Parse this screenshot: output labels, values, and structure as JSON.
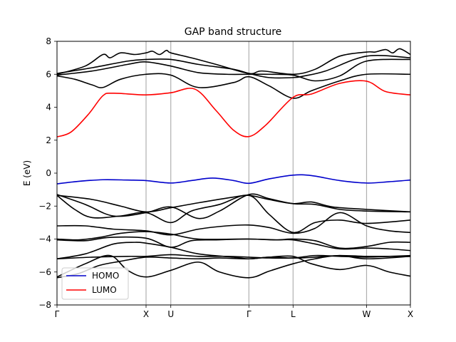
{
  "chart_data": {
    "type": "line",
    "title": "GAP band structure",
    "xlabel": "",
    "ylabel": "E (eV)",
    "ylim": [
      -8,
      8
    ],
    "yticks": [
      -8,
      -6,
      -4,
      -2,
      0,
      2,
      4,
      6,
      8
    ],
    "xlim": [
      0,
      1
    ],
    "kpoints": [
      {
        "label": "Γ",
        "x": 0.0
      },
      {
        "label": "X",
        "x": 0.252
      },
      {
        "label": "U",
        "x": 0.322
      },
      {
        "label": "Γ",
        "x": 0.543
      },
      {
        "label": "L",
        "x": 0.668
      },
      {
        "label": "W",
        "x": 0.876
      },
      {
        "label": "X",
        "x": 1.0
      }
    ],
    "grid": "vertical lines at k-points",
    "legend": {
      "placement": "lower-left",
      "entries": [
        "HOMO",
        "LUMO"
      ]
    },
    "colors": {
      "band": "#000000",
      "homo": "#0000cc",
      "lumo": "#ff0000",
      "grid": "#b0b0b0"
    },
    "series": [
      {
        "name": "HOMO",
        "role": "homo",
        "points": [
          [
            0,
            -0.65
          ],
          [
            0.06,
            -0.5
          ],
          [
            0.13,
            -0.4
          ],
          [
            0.2,
            -0.42
          ],
          [
            0.252,
            -0.45
          ],
          [
            0.322,
            -0.6
          ],
          [
            0.38,
            -0.45
          ],
          [
            0.44,
            -0.3
          ],
          [
            0.5,
            -0.45
          ],
          [
            0.543,
            -0.62
          ],
          [
            0.6,
            -0.35
          ],
          [
            0.668,
            -0.12
          ],
          [
            0.72,
            -0.15
          ],
          [
            0.8,
            -0.45
          ],
          [
            0.876,
            -0.6
          ],
          [
            0.94,
            -0.52
          ],
          [
            1.0,
            -0.42
          ]
        ]
      },
      {
        "name": "LUMO",
        "role": "lumo",
        "points": [
          [
            0,
            2.2
          ],
          [
            0.04,
            2.5
          ],
          [
            0.09,
            3.6
          ],
          [
            0.13,
            4.7
          ],
          [
            0.16,
            4.85
          ],
          [
            0.252,
            4.75
          ],
          [
            0.322,
            4.88
          ],
          [
            0.39,
            5.1
          ],
          [
            0.45,
            3.8
          ],
          [
            0.5,
            2.6
          ],
          [
            0.543,
            2.22
          ],
          [
            0.59,
            2.9
          ],
          [
            0.668,
            4.6
          ],
          [
            0.72,
            4.8
          ],
          [
            0.8,
            5.45
          ],
          [
            0.876,
            5.58
          ],
          [
            0.93,
            4.95
          ],
          [
            1.0,
            4.75
          ]
        ]
      },
      {
        "role": "band",
        "points": [
          [
            0,
            6.0
          ],
          [
            0.08,
            6.5
          ],
          [
            0.13,
            7.2
          ],
          [
            0.15,
            7.0
          ],
          [
            0.18,
            7.3
          ],
          [
            0.22,
            7.2
          ],
          [
            0.252,
            7.3
          ],
          [
            0.27,
            7.4
          ],
          [
            0.29,
            7.2
          ],
          [
            0.31,
            7.45
          ],
          [
            0.322,
            7.3
          ],
          [
            0.38,
            7.0
          ],
          [
            0.45,
            6.6
          ],
          [
            0.543,
            6.05
          ],
          [
            0.58,
            6.2
          ],
          [
            0.668,
            6.0
          ],
          [
            0.73,
            6.3
          ],
          [
            0.8,
            7.1
          ],
          [
            0.876,
            7.35
          ],
          [
            0.9,
            7.35
          ],
          [
            0.93,
            7.5
          ],
          [
            0.95,
            7.3
          ],
          [
            0.97,
            7.55
          ],
          [
            1.0,
            7.2
          ]
        ]
      },
      {
        "role": "band",
        "points": [
          [
            0,
            6.05
          ],
          [
            0.1,
            6.4
          ],
          [
            0.2,
            6.8
          ],
          [
            0.252,
            6.9
          ],
          [
            0.322,
            6.9
          ],
          [
            0.4,
            6.6
          ],
          [
            0.5,
            6.3
          ],
          [
            0.543,
            6.05
          ],
          [
            0.6,
            5.8
          ],
          [
            0.668,
            5.8
          ],
          [
            0.7,
            5.9
          ],
          [
            0.76,
            6.2
          ],
          [
            0.876,
            7.1
          ],
          [
            1.0,
            7.0
          ]
        ]
      },
      {
        "role": "band",
        "points": [
          [
            0,
            5.95
          ],
          [
            0.1,
            6.2
          ],
          [
            0.2,
            6.6
          ],
          [
            0.252,
            6.75
          ],
          [
            0.322,
            6.5
          ],
          [
            0.4,
            6.1
          ],
          [
            0.48,
            6.0
          ],
          [
            0.543,
            6.0
          ],
          [
            0.6,
            6.0
          ],
          [
            0.668,
            5.95
          ],
          [
            0.73,
            5.6
          ],
          [
            0.8,
            5.9
          ],
          [
            0.876,
            6.8
          ],
          [
            1.0,
            6.9
          ]
        ]
      },
      {
        "role": "band",
        "points": [
          [
            0,
            5.9
          ],
          [
            0.05,
            5.7
          ],
          [
            0.1,
            5.35
          ],
          [
            0.13,
            5.2
          ],
          [
            0.18,
            5.7
          ],
          [
            0.252,
            6.0
          ],
          [
            0.322,
            5.95
          ],
          [
            0.4,
            5.2
          ],
          [
            0.5,
            5.5
          ],
          [
            0.543,
            5.85
          ],
          [
            0.6,
            5.3
          ],
          [
            0.668,
            4.55
          ],
          [
            0.72,
            5.0
          ],
          [
            0.8,
            5.6
          ],
          [
            0.876,
            6.0
          ],
          [
            1.0,
            6.0
          ]
        ]
      },
      {
        "role": "band",
        "points": [
          [
            0,
            -1.35
          ],
          [
            0.1,
            -1.6
          ],
          [
            0.18,
            -2.0
          ],
          [
            0.252,
            -2.35
          ],
          [
            0.322,
            -2.1
          ],
          [
            0.4,
            -1.8
          ],
          [
            0.5,
            -1.45
          ],
          [
            0.543,
            -1.35
          ],
          [
            0.6,
            -1.6
          ],
          [
            0.668,
            -1.85
          ],
          [
            0.72,
            -1.75
          ],
          [
            0.78,
            -2.05
          ],
          [
            0.876,
            -2.2
          ],
          [
            1.0,
            -2.35
          ]
        ]
      },
      {
        "role": "band",
        "points": [
          [
            0,
            -1.3
          ],
          [
            0.08,
            -1.9
          ],
          [
            0.16,
            -2.6
          ],
          [
            0.252,
            -2.4
          ],
          [
            0.322,
            -2.05
          ],
          [
            0.4,
            -2.75
          ],
          [
            0.46,
            -2.3
          ],
          [
            0.543,
            -1.3
          ],
          [
            0.6,
            -1.55
          ],
          [
            0.668,
            -1.85
          ],
          [
            0.73,
            -1.9
          ],
          [
            0.8,
            -2.2
          ],
          [
            0.876,
            -2.3
          ],
          [
            1.0,
            -2.35
          ]
        ]
      },
      {
        "role": "band",
        "points": [
          [
            0,
            -1.35
          ],
          [
            0.05,
            -2.2
          ],
          [
            0.1,
            -2.7
          ],
          [
            0.18,
            -2.6
          ],
          [
            0.252,
            -2.4
          ],
          [
            0.322,
            -3.0
          ],
          [
            0.38,
            -2.3
          ],
          [
            0.46,
            -1.9
          ],
          [
            0.543,
            -1.35
          ],
          [
            0.6,
            -2.5
          ],
          [
            0.668,
            -3.6
          ],
          [
            0.73,
            -3.0
          ],
          [
            0.8,
            -2.85
          ],
          [
            0.876,
            -3.05
          ],
          [
            1.0,
            -2.85
          ]
        ]
      },
      {
        "role": "band",
        "points": [
          [
            0,
            -3.2
          ],
          [
            0.08,
            -3.2
          ],
          [
            0.16,
            -3.4
          ],
          [
            0.252,
            -3.5
          ],
          [
            0.322,
            -3.75
          ],
          [
            0.4,
            -3.4
          ],
          [
            0.48,
            -3.2
          ],
          [
            0.543,
            -3.15
          ],
          [
            0.6,
            -3.3
          ],
          [
            0.668,
            -3.65
          ],
          [
            0.73,
            -3.35
          ],
          [
            0.8,
            -2.4
          ],
          [
            0.876,
            -3.2
          ],
          [
            0.94,
            -3.5
          ],
          [
            1.0,
            -3.6
          ]
        ]
      },
      {
        "role": "band",
        "points": [
          [
            0,
            -4.0
          ],
          [
            0.06,
            -4.05
          ],
          [
            0.12,
            -3.9
          ],
          [
            0.18,
            -3.65
          ],
          [
            0.252,
            -3.55
          ],
          [
            0.322,
            -3.7
          ],
          [
            0.4,
            -4.0
          ],
          [
            0.543,
            -4.0
          ],
          [
            0.62,
            -4.05
          ],
          [
            0.668,
            -4.05
          ],
          [
            0.73,
            -4.3
          ],
          [
            0.8,
            -4.6
          ],
          [
            0.876,
            -4.55
          ],
          [
            0.94,
            -4.6
          ],
          [
            1.0,
            -4.7
          ]
        ]
      },
      {
        "role": "band",
        "points": [
          [
            0,
            -4.05
          ],
          [
            0.08,
            -4.1
          ],
          [
            0.15,
            -3.9
          ],
          [
            0.252,
            -3.95
          ],
          [
            0.322,
            -4.5
          ],
          [
            0.38,
            -4.1
          ],
          [
            0.45,
            -4.05
          ],
          [
            0.543,
            -4.0
          ],
          [
            0.62,
            -4.05
          ],
          [
            0.668,
            -4.0
          ],
          [
            0.73,
            -4.1
          ],
          [
            0.8,
            -4.55
          ],
          [
            0.876,
            -4.45
          ],
          [
            0.94,
            -4.2
          ],
          [
            1.0,
            -4.2
          ]
        ]
      },
      {
        "role": "band",
        "points": [
          [
            0,
            -5.2
          ],
          [
            0.1,
            -5.1
          ],
          [
            0.2,
            -5.05
          ],
          [
            0.252,
            -5.05
          ],
          [
            0.322,
            -4.95
          ],
          [
            0.4,
            -5.05
          ],
          [
            0.48,
            -5.05
          ],
          [
            0.543,
            -5.1
          ],
          [
            0.6,
            -5.15
          ],
          [
            0.668,
            -5.15
          ],
          [
            0.73,
            -5.0
          ],
          [
            0.8,
            -5.05
          ],
          [
            0.876,
            -5.1
          ],
          [
            0.94,
            -5.05
          ],
          [
            1.0,
            -5.0
          ]
        ]
      },
      {
        "role": "band",
        "points": [
          [
            0,
            -5.2
          ],
          [
            0.08,
            -4.9
          ],
          [
            0.16,
            -4.3
          ],
          [
            0.22,
            -4.2
          ],
          [
            0.252,
            -4.25
          ],
          [
            0.322,
            -4.5
          ],
          [
            0.4,
            -4.9
          ],
          [
            0.5,
            -5.1
          ],
          [
            0.543,
            -5.2
          ],
          [
            0.6,
            -5.1
          ],
          [
            0.668,
            -5.05
          ],
          [
            0.72,
            -5.5
          ],
          [
            0.8,
            -5.85
          ],
          [
            0.876,
            -5.6
          ],
          [
            0.94,
            -6.0
          ],
          [
            1.0,
            -6.25
          ]
        ]
      },
      {
        "role": "band",
        "points": [
          [
            0,
            -6.35
          ],
          [
            0.06,
            -6.1
          ],
          [
            0.12,
            -5.6
          ],
          [
            0.18,
            -5.35
          ],
          [
            0.252,
            -5.1
          ],
          [
            0.322,
            -5.15
          ],
          [
            0.4,
            -5.2
          ],
          [
            0.46,
            -5.15
          ],
          [
            0.543,
            -5.2
          ],
          [
            0.6,
            -5.1
          ],
          [
            0.668,
            -5.15
          ],
          [
            0.73,
            -5.1
          ],
          [
            0.8,
            -5.0
          ],
          [
            0.876,
            -5.05
          ],
          [
            1.0,
            -5.05
          ]
        ]
      },
      {
        "role": "band",
        "points": [
          [
            0,
            -6.3
          ],
          [
            0.08,
            -5.5
          ],
          [
            0.15,
            -5.0
          ],
          [
            0.2,
            -5.9
          ],
          [
            0.252,
            -6.3
          ],
          [
            0.322,
            -5.9
          ],
          [
            0.4,
            -5.4
          ],
          [
            0.46,
            -6.0
          ],
          [
            0.543,
            -6.35
          ],
          [
            0.6,
            -5.95
          ],
          [
            0.668,
            -5.5
          ],
          [
            0.73,
            -5.2
          ],
          [
            0.8,
            -5.0
          ],
          [
            0.876,
            -5.2
          ],
          [
            1.0,
            -5.05
          ]
        ]
      }
    ]
  }
}
